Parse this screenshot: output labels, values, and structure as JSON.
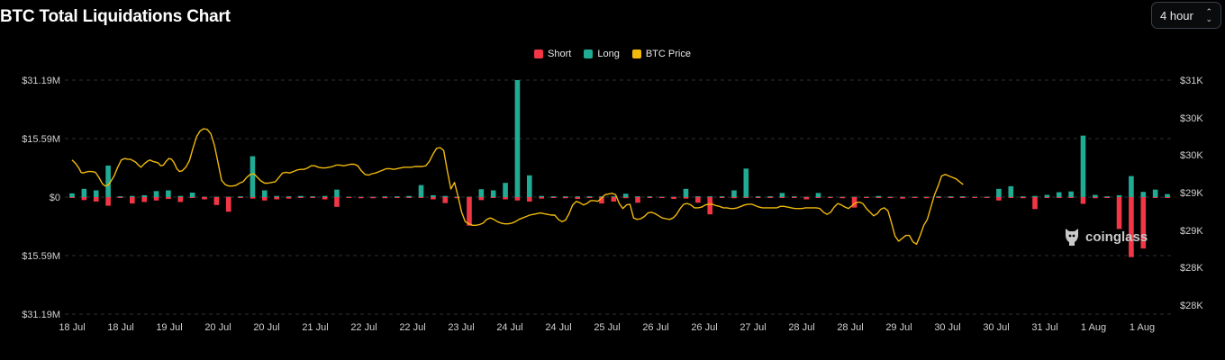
{
  "title": "BTC Total Liquidations Chart",
  "interval": {
    "selected": "4 hour"
  },
  "watermark": "coinglass",
  "colors": {
    "short": "#f23645",
    "long": "#22ab94",
    "price": "#f0b90b"
  },
  "chart_data": {
    "type": "bar",
    "title": "BTC Total Liquidations Chart",
    "legend": {
      "placement": "top-center",
      "entries": [
        "Short",
        "Long",
        "BTC Price"
      ]
    },
    "y_left": {
      "ticks": [
        "$31.19M",
        "$15.59M",
        "$0",
        "$15.59M",
        "$31.19M"
      ],
      "range_millions": [
        -31.19,
        31.19
      ]
    },
    "y_right": {
      "ticks": [
        "$31K",
        "$30K",
        "$30K",
        "$29K",
        "$29K",
        "$28K",
        "$28K"
      ],
      "range": [
        28000,
        31100
      ]
    },
    "x_ticks": [
      "18 Jul",
      "18 Jul",
      "19 Jul",
      "20 Jul",
      "20 Jul",
      "21 Jul",
      "22 Jul",
      "22 Jul",
      "23 Jul",
      "24 Jul",
      "24 Jul",
      "25 Jul",
      "26 Jul",
      "26 Jul",
      "27 Jul",
      "28 Jul",
      "28 Jul",
      "29 Jul",
      "30 Jul",
      "30 Jul",
      "31 Jul",
      "1 Aug",
      "1 Aug"
    ],
    "grid": true,
    "series": [
      {
        "name": "Long",
        "values_millions": [
          1.0,
          2.2,
          1.8,
          8.4,
          0.2,
          0.3,
          0.5,
          1.6,
          1.8,
          0.3,
          1.2,
          0.1,
          0.1,
          0.1,
          0.2,
          10.9,
          1.8,
          0.3,
          0.2,
          0.3,
          0.2,
          0.3,
          2.0,
          0.1,
          0.1,
          0.1,
          0.2,
          0.2,
          0.3,
          3.2,
          0.5,
          0.3,
          0.1,
          0.1,
          2.1,
          1.8,
          3.8,
          31.2,
          5.8,
          0.3,
          0.2,
          0.2,
          0.2,
          0.2,
          0.2,
          0.2,
          0.9,
          0.2,
          0.2,
          0.1,
          0.1,
          2.2,
          0.2,
          0.2,
          0.2,
          1.8,
          7.6,
          0.2,
          0.2,
          1.1,
          0.2,
          0.1,
          1.1,
          0.1,
          0.1,
          0.1,
          0.1,
          0.3,
          0.1,
          0.1,
          0.1,
          0.1,
          0.2,
          0.2,
          0.2,
          0.1,
          0.1,
          2.2,
          2.9,
          0.2,
          0.3,
          0.6,
          1.3,
          1.5,
          16.4,
          0.6,
          0.2,
          0.5,
          5.6,
          1.4,
          2.0,
          0.8
        ]
      },
      {
        "name": "Short",
        "values_millions": [
          0.2,
          0.8,
          1.2,
          2.3,
          0.1,
          1.7,
          1.3,
          0.9,
          0.5,
          1.3,
          0.2,
          0.6,
          2.1,
          3.9,
          0.2,
          0.4,
          0.9,
          0.6,
          0.4,
          0.2,
          0.2,
          0.6,
          2.6,
          0.2,
          0.3,
          0.3,
          0.3,
          0.2,
          0.2,
          0.2,
          0.6,
          1.6,
          0.3,
          7.6,
          0.8,
          0.2,
          0.6,
          0.9,
          1.2,
          0.4,
          0.2,
          0.3,
          0.5,
          0.2,
          1.7,
          1.2,
          0.3,
          1.5,
          0.2,
          0.2,
          0.5,
          0.4,
          1.5,
          4.6,
          0.2,
          0.3,
          0.2,
          0.2,
          0.2,
          0.2,
          0.2,
          0.6,
          0.2,
          0.2,
          0.3,
          2.8,
          0.1,
          0.1,
          0.2,
          0.4,
          0.2,
          0.3,
          0.2,
          0.2,
          0.2,
          0.1,
          0.2,
          0.9,
          0.2,
          0.3,
          3.2,
          0.2,
          0.2,
          0.2,
          1.8,
          0.3,
          0.2,
          8.5,
          16.0,
          13.7,
          0.1,
          0.1
        ]
      },
      {
        "name": "BTC Price",
        "x_index": [
          0,
          4,
          8,
          10,
          12,
          15,
          18,
          22,
          26,
          30,
          34,
          37,
          40,
          43,
          47,
          51,
          55,
          59,
          62,
          65,
          68,
          71,
          74,
          77,
          81,
          84,
          87,
          90,
          93,
          96,
          99,
          102,
          105,
          108,
          111,
          114,
          117,
          120,
          123,
          127,
          131,
          135,
          139,
          143,
          147,
          151,
          155,
          159,
          163,
          167,
          171,
          175,
          179,
          183,
          187,
          191,
          195,
          199,
          203,
          207,
          211,
          215,
          219,
          223,
          227,
          231,
          235,
          239,
          243,
          247,
          251,
          255,
          259,
          263,
          267,
          271,
          275,
          279,
          283,
          287,
          291,
          295,
          299,
          303,
          307,
          311,
          315,
          319,
          323,
          327,
          331,
          335,
          339,
          343,
          347,
          351,
          355,
          359,
          363,
          367,
          371,
          375,
          379,
          383,
          387,
          391,
          395,
          399,
          403,
          407,
          411,
          415,
          419,
          423,
          427,
          431,
          435,
          439,
          443,
          447,
          451,
          455,
          459,
          463,
          467,
          471,
          475,
          479,
          483,
          487,
          491,
          495,
          499,
          503,
          507,
          511,
          515,
          519,
          523,
          527,
          531,
          535,
          539,
          543,
          547,
          551,
          555,
          559,
          563,
          567,
          571,
          575,
          579,
          583,
          587,
          591,
          595,
          599,
          603,
          607,
          611,
          615,
          619,
          623,
          627,
          631,
          635,
          639,
          643,
          647,
          651,
          655,
          659,
          663,
          667,
          671,
          675,
          679,
          683,
          687,
          691,
          695,
          699,
          703,
          707,
          711,
          715,
          719,
          723,
          727,
          731,
          735,
          739,
          743,
          747,
          751,
          755,
          759,
          763,
          767,
          771,
          775,
          779,
          783,
          787,
          791,
          795,
          799,
          803,
          807,
          811,
          815,
          819,
          823,
          827,
          831,
          835,
          839,
          843,
          847,
          851,
          855,
          859,
          863,
          867,
          871,
          875,
          879,
          883,
          887,
          891,
          895,
          899,
          903,
          907,
          911,
          915,
          919,
          923,
          927,
          931,
          935,
          939,
          943,
          947,
          951,
          955,
          959,
          963,
          967,
          971,
          975,
          979,
          983,
          987,
          991,
          995,
          999,
          1003,
          1007,
          1011,
          1015,
          1019,
          1023,
          1027,
          1031,
          1035,
          1039,
          1043,
          1047,
          1051,
          1055,
          1059,
          1063,
          1067,
          1071,
          1075,
          1079,
          1083,
          1087,
          1091,
          1095,
          1099,
          1103,
          1107,
          1111,
          1115,
          1119,
          1123,
          1127,
          1131,
          1135,
          1139,
          1143,
          1147,
          1151,
          1155,
          1159,
          1163,
          1167,
          1171,
          1175,
          1179,
          1183,
          1187,
          1191,
          1195,
          1199,
          1203,
          1207,
          1211,
          1215,
          1219,
          1223
        ],
        "price_usd": [
          30000,
          29950,
          29880,
          29830,
          29820,
          29830,
          29840,
          29840,
          29830,
          29760,
          29670,
          29640,
          29650,
          29700,
          29780,
          29900,
          30000,
          30020,
          30010,
          30010,
          29990,
          29970,
          29930,
          29900,
          29950,
          29980,
          30000,
          29980,
          29970,
          29960,
          29920,
          29930,
          29980,
          30020,
          30010,
          29960,
          29880,
          29840,
          29850,
          29900,
          29990,
          30160,
          30320,
          30400,
          30430,
          30420,
          30360,
          30200,
          29960,
          29720,
          29660,
          29640,
          29640,
          29650,
          29680,
          29700,
          29760,
          29800,
          29810,
          29760,
          29710,
          29680,
          29680,
          29690,
          29700,
          29760,
          29820,
          29830,
          29820,
          29840,
          29860,
          29870,
          29870,
          29890,
          29920,
          29920,
          29900,
          29890,
          29890,
          29900,
          29910,
          29930,
          29930,
          29920,
          29930,
          29940,
          29940,
          29920,
          29850,
          29800,
          29790,
          29810,
          29820,
          29840,
          29860,
          29880,
          29880,
          29870,
          29880,
          29890,
          29900,
          29900,
          29900,
          29910,
          29910,
          29910,
          29920,
          29980,
          30080,
          30160,
          30170,
          30130,
          29850,
          29600,
          29690,
          29500,
          29280,
          29150,
          29120,
          29100,
          29100,
          29110,
          29130,
          29180,
          29200,
          29180,
          29150,
          29130,
          29120,
          29120,
          29130,
          29150,
          29180,
          29200,
          29220,
          29240,
          29250,
          29260,
          29270,
          29260,
          29250,
          29240,
          29240,
          29180,
          29150,
          29170,
          29260,
          29380,
          29430,
          29410,
          29380,
          29400,
          29440,
          29440,
          29430,
          29470,
          29520,
          29530,
          29540,
          29520,
          29400,
          29330,
          29380,
          29390,
          29200,
          29180,
          29190,
          29220,
          29270,
          29280,
          29260,
          29230,
          29200,
          29190,
          29180,
          29200,
          29250,
          29330,
          29390,
          29400,
          29380,
          29340,
          29340,
          29350,
          29380,
          29390,
          29390,
          29370,
          29360,
          29340,
          29340,
          29330,
          29330,
          29340,
          29360,
          29380,
          29390,
          29390,
          29370,
          29350,
          29340,
          29340,
          29340,
          29340,
          29340,
          29360,
          29360,
          29350,
          29340,
          29330,
          29330,
          29330,
          29340,
          29340,
          29340,
          29340,
          29330,
          29280,
          29250,
          29280,
          29350,
          29400,
          29380,
          29350,
          29330,
          29370,
          29410,
          29420,
          29400,
          29330,
          29280,
          29230,
          29260,
          29320,
          29340,
          29300,
          29130,
          28950,
          28880,
          28920,
          28960,
          28960,
          28870,
          28840,
          28960,
          29100,
          29180,
          29350,
          29520,
          29640,
          29780,
          29800,
          29780,
          29760,
          29740,
          29700,
          29660
        ]
      }
    ]
  }
}
